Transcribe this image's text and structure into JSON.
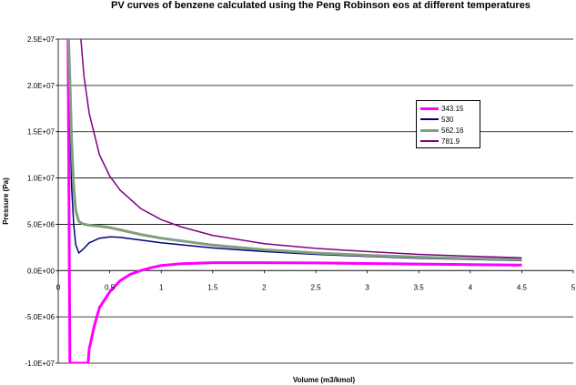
{
  "chart_data": {
    "type": "line",
    "title": "PV curves of benzene calculated using the Peng Robinson eos at different temperatures",
    "xlabel": "Volume (m3/kmol)",
    "ylabel": "Pressure (Pa)",
    "xlim": [
      0,
      5
    ],
    "ylim": [
      -10000000,
      25000000
    ],
    "x_ticks": [
      "0",
      "0.5",
      "1",
      "1.5",
      "2",
      "2.5",
      "3",
      "3.5",
      "4",
      "4.5",
      "5"
    ],
    "y_ticks": [
      "-1.0E+07",
      "-5.0E+06",
      "0.0E+00",
      "5.0E+06",
      "1.0E+07",
      "1.5E+07",
      "2.0E+07",
      "2.5E+07"
    ],
    "grid": "horizontal",
    "legend_position": "right",
    "series": [
      {
        "name": "343.15",
        "color": "#ff00ff",
        "points": [
          [
            0.095,
            25000000
          ],
          [
            0.1,
            16000000
          ],
          [
            0.104,
            8000000
          ],
          [
            0.108,
            0
          ],
          [
            0.111,
            -6000000
          ],
          [
            0.113,
            -10000000
          ],
          [
            0.29,
            -10000000
          ],
          [
            0.3,
            -8500000
          ],
          [
            0.35,
            -6000000
          ],
          [
            0.4,
            -4000000
          ],
          [
            0.5,
            -2300000
          ],
          [
            0.6,
            -1100000
          ],
          [
            0.7,
            -400000
          ],
          [
            0.8,
            0
          ],
          [
            0.9,
            300000
          ],
          [
            1.0,
            550000
          ],
          [
            1.2,
            750000
          ],
          [
            1.5,
            850000
          ],
          [
            2.0,
            850000
          ],
          [
            2.5,
            820000
          ],
          [
            3.0,
            770000
          ],
          [
            3.5,
            710000
          ],
          [
            4.0,
            650000
          ],
          [
            4.5,
            590000
          ]
        ]
      },
      {
        "name": "530",
        "color": "#000080",
        "points": [
          [
            0.1,
            25000000
          ],
          [
            0.11,
            20000000
          ],
          [
            0.12,
            14000000
          ],
          [
            0.13,
            9000000
          ],
          [
            0.15,
            5000000
          ],
          [
            0.17,
            2800000
          ],
          [
            0.2,
            1900000
          ],
          [
            0.25,
            2400000
          ],
          [
            0.3,
            3000000
          ],
          [
            0.4,
            3500000
          ],
          [
            0.5,
            3650000
          ],
          [
            0.6,
            3600000
          ],
          [
            0.8,
            3300000
          ],
          [
            1.0,
            3000000
          ],
          [
            1.5,
            2450000
          ],
          [
            2.0,
            2050000
          ],
          [
            2.5,
            1750000
          ],
          [
            3.0,
            1520000
          ],
          [
            3.5,
            1340000
          ],
          [
            4.0,
            1200000
          ],
          [
            4.5,
            1080000
          ]
        ]
      },
      {
        "name": "562.16",
        "color": "#7f9f7f",
        "points": [
          [
            0.1,
            25000000
          ],
          [
            0.115,
            20000000
          ],
          [
            0.13,
            14000000
          ],
          [
            0.15,
            9000000
          ],
          [
            0.17,
            6500000
          ],
          [
            0.2,
            5300000
          ],
          [
            0.25,
            5000000
          ],
          [
            0.3,
            4900000
          ],
          [
            0.4,
            4800000
          ],
          [
            0.5,
            4650000
          ],
          [
            0.6,
            4400000
          ],
          [
            0.8,
            3900000
          ],
          [
            1.0,
            3500000
          ],
          [
            1.5,
            2750000
          ],
          [
            2.0,
            2250000
          ],
          [
            2.5,
            1900000
          ],
          [
            3.0,
            1650000
          ],
          [
            3.5,
            1450000
          ],
          [
            4.0,
            1300000
          ],
          [
            4.5,
            1180000
          ]
        ]
      },
      {
        "name": "781.9",
        "color": "#800080",
        "points": [
          [
            0.22,
            25000000
          ],
          [
            0.25,
            21000000
          ],
          [
            0.3,
            17000000
          ],
          [
            0.4,
            12500000
          ],
          [
            0.5,
            10200000
          ],
          [
            0.6,
            8700000
          ],
          [
            0.8,
            6700000
          ],
          [
            1.0,
            5500000
          ],
          [
            1.2,
            4700000
          ],
          [
            1.5,
            3800000
          ],
          [
            2.0,
            2900000
          ],
          [
            2.5,
            2400000
          ],
          [
            3.0,
            2050000
          ],
          [
            3.5,
            1750000
          ],
          [
            4.0,
            1550000
          ],
          [
            4.5,
            1380000
          ]
        ]
      }
    ]
  }
}
